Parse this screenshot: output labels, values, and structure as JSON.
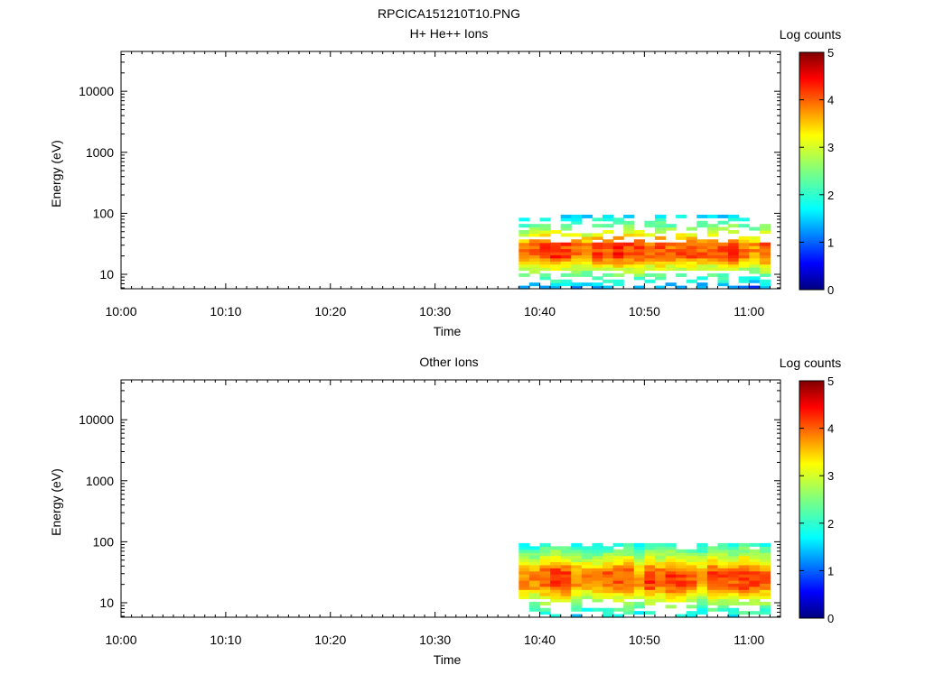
{
  "figure": {
    "title": "RPCICA151210T10.PNG"
  },
  "chart_data": [
    {
      "type": "heatmap",
      "title": "H+ He++ Ions",
      "xlabel": "Time",
      "ylabel": "Energy (eV)",
      "x_axis": {
        "scale": "time",
        "range": [
          "10:00",
          "11:03"
        ],
        "ticks": [
          "10:00",
          "10:10",
          "10:20",
          "10:30",
          "10:40",
          "10:50",
          "11:00"
        ]
      },
      "y_axis": {
        "scale": "log",
        "range": [
          5.8,
          45000
        ],
        "ticks": [
          10,
          100,
          1000,
          10000
        ],
        "tick_labels": [
          "10",
          "100",
          "1000",
          "10000"
        ]
      },
      "colorbar": {
        "title": "Log counts",
        "range": [
          0,
          5
        ],
        "ticks": [
          "0",
          "1",
          "2",
          "3",
          "4",
          "5"
        ],
        "colormap": "jet"
      },
      "data": {
        "time_start": "10:38",
        "time_end": "11:02",
        "n_time_bins": 24,
        "energy_min": 5.8,
        "energy_max": 95,
        "n_energy_bins": 24,
        "peak_energy": 25,
        "peak_log_counts": 4.0,
        "peak_width_decades": 0.2,
        "peak_falloff_log_counts_per_decade": 5.4,
        "sparse_upper_edge": true,
        "sparse_lower_edge": true,
        "variation": 0.3,
        "seed": 7
      }
    },
    {
      "type": "heatmap",
      "title": "Other Ions",
      "xlabel": "Time",
      "ylabel": "Energy (eV)",
      "x_axis": {
        "scale": "time",
        "range": [
          "10:00",
          "11:03"
        ],
        "ticks": [
          "10:00",
          "10:10",
          "10:20",
          "10:30",
          "10:40",
          "10:50",
          "11:00"
        ]
      },
      "y_axis": {
        "scale": "log",
        "range": [
          5.8,
          45000
        ],
        "ticks": [
          10,
          100,
          1000,
          10000
        ],
        "tick_labels": [
          "10",
          "100",
          "1000",
          "10000"
        ]
      },
      "colorbar": {
        "title": "Log counts",
        "range": [
          0,
          5
        ],
        "ticks": [
          "0",
          "1",
          "2",
          "3",
          "4",
          "5"
        ],
        "colormap": "jet"
      },
      "data": {
        "time_start": "10:38",
        "time_end": "11:02",
        "n_time_bins": 24,
        "energy_min": 5.8,
        "energy_max": 95,
        "n_energy_bins": 24,
        "peak_energy": 25,
        "peak_log_counts": 4.0,
        "peak_width_decades": 0.22,
        "peak_falloff_log_counts_per_decade": 4.6,
        "sparse_upper_edge": false,
        "sparse_lower_edge": true,
        "variation": 0.3,
        "seed": 21
      }
    }
  ]
}
